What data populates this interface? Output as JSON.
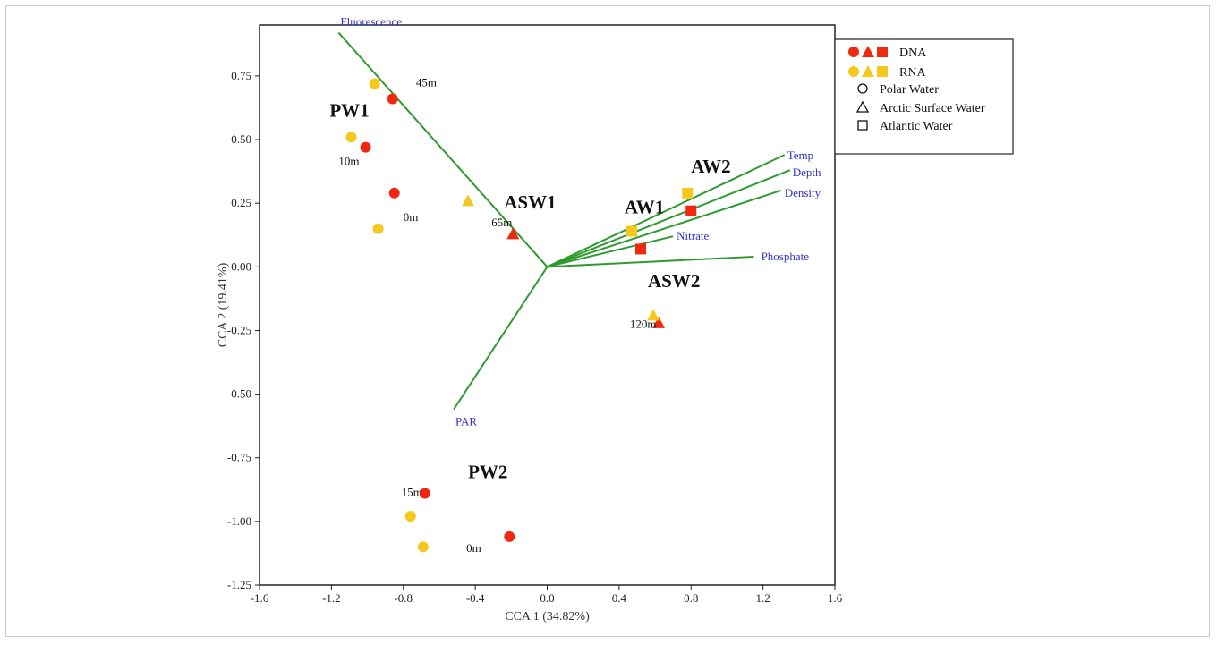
{
  "chart_data": {
    "type": "scatter",
    "title": "",
    "xlabel": "CCA 1 (34.82%)",
    "ylabel": "CCA 2 (19.41%)",
    "xlim": [
      -1.6,
      1.6
    ],
    "ylim": [
      -1.25,
      0.95
    ],
    "x_ticks": [
      "-1.6",
      "-1.2",
      "-0.8",
      "-0.4",
      "0.0",
      "0.4",
      "0.8",
      "1.2",
      "1.6"
    ],
    "y_ticks": [
      "0.75",
      "0.50",
      "0.25",
      "0.00",
      "-0.25",
      "-0.50",
      "-0.75",
      "-1.00",
      "-1.25"
    ],
    "grid": false,
    "legend_position": "top-right",
    "colors": {
      "DNA": "#f02810",
      "RNA": "#f5c81e",
      "vector": "#2f9a2f",
      "vector_label": "#3333cc"
    },
    "vectors": [
      {
        "name": "Fluorescence",
        "x": -1.16,
        "y": 0.92
      },
      {
        "name": "Temp",
        "x": 1.32,
        "y": 0.44
      },
      {
        "name": "Depth",
        "x": 1.35,
        "y": 0.38
      },
      {
        "name": "Density",
        "x": 1.3,
        "y": 0.3
      },
      {
        "name": "Nitrate",
        "x": 0.7,
        "y": 0.12
      },
      {
        "name": "Phosphate",
        "x": 1.15,
        "y": 0.04
      },
      {
        "name": "PAR",
        "x": -0.52,
        "y": -0.56
      }
    ],
    "series": [
      {
        "name": "DNA",
        "points": [
          {
            "x": -0.86,
            "y": 0.66,
            "shape": "circle"
          },
          {
            "x": -1.01,
            "y": 0.47,
            "shape": "circle"
          },
          {
            "x": -0.85,
            "y": 0.29,
            "shape": "circle"
          },
          {
            "x": -0.19,
            "y": 0.13,
            "shape": "triangle"
          },
          {
            "x": 0.52,
            "y": 0.07,
            "shape": "square"
          },
          {
            "x": 0.8,
            "y": 0.22,
            "shape": "square"
          },
          {
            "x": 0.62,
            "y": -0.22,
            "shape": "triangle"
          },
          {
            "x": -0.68,
            "y": -0.89,
            "shape": "circle"
          },
          {
            "x": -0.21,
            "y": -1.06,
            "shape": "circle"
          }
        ]
      },
      {
        "name": "RNA",
        "points": [
          {
            "x": -0.96,
            "y": 0.72,
            "shape": "circle"
          },
          {
            "x": -1.09,
            "y": 0.51,
            "shape": "circle"
          },
          {
            "x": -0.94,
            "y": 0.15,
            "shape": "circle"
          },
          {
            "x": -0.44,
            "y": 0.26,
            "shape": "triangle"
          },
          {
            "x": 0.47,
            "y": 0.14,
            "shape": "square"
          },
          {
            "x": 0.78,
            "y": 0.29,
            "shape": "square"
          },
          {
            "x": 0.59,
            "y": -0.19,
            "shape": "triangle"
          },
          {
            "x": -0.76,
            "y": -0.98,
            "shape": "circle"
          },
          {
            "x": -0.69,
            "y": -1.1,
            "shape": "circle"
          }
        ]
      }
    ],
    "group_labels": [
      {
        "text": "PW1",
        "x": -1.21,
        "y": 0.59
      },
      {
        "text": "ASW1",
        "x": -0.24,
        "y": 0.23
      },
      {
        "text": "AW1",
        "x": 0.43,
        "y": 0.21
      },
      {
        "text": "AW2",
        "x": 0.8,
        "y": 0.37
      },
      {
        "text": "ASW2",
        "x": 0.56,
        "y": -0.08
      },
      {
        "text": "PW2",
        "x": -0.44,
        "y": -0.83
      }
    ],
    "depth_labels": [
      {
        "text": "45m",
        "x": -0.73,
        "y": 0.71
      },
      {
        "text": "10m",
        "x": -1.16,
        "y": 0.4
      },
      {
        "text": "0m",
        "x": -0.8,
        "y": 0.18
      },
      {
        "text": "65m",
        "x": -0.31,
        "y": 0.16
      },
      {
        "text": "120m",
        "x": 0.46,
        "y": -0.24
      },
      {
        "text": "15m",
        "x": -0.81,
        "y": -0.9
      },
      {
        "text": "0m",
        "x": -0.45,
        "y": -1.12
      }
    ],
    "legend": {
      "entries": [
        {
          "label": "DNA",
          "kind": "color",
          "color_key": "DNA"
        },
        {
          "label": "RNA",
          "kind": "color",
          "color_key": "RNA"
        },
        {
          "label": "Polar Water",
          "kind": "shape",
          "shape": "circle"
        },
        {
          "label": "Arctic Surface Water",
          "kind": "shape",
          "shape": "triangle"
        },
        {
          "label": "Atlantic Water",
          "kind": "shape",
          "shape": "square"
        }
      ]
    }
  }
}
